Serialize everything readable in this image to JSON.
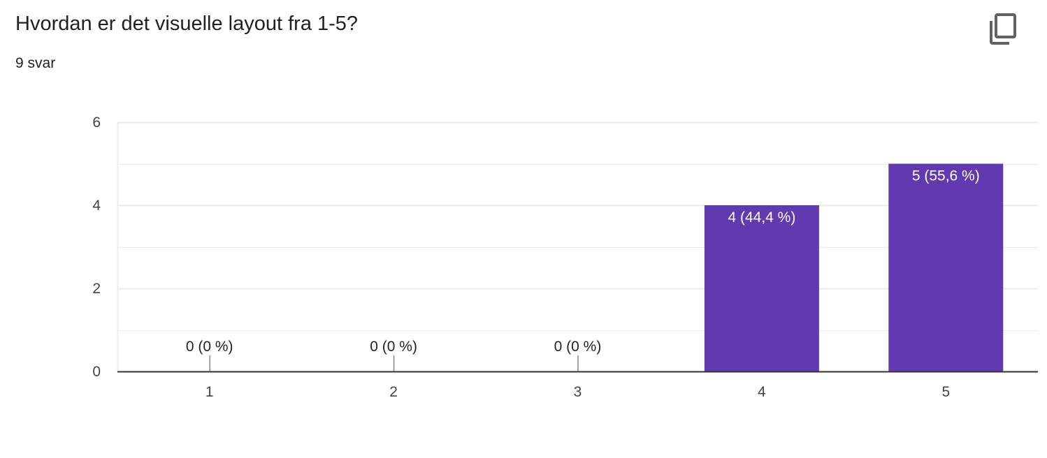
{
  "question": {
    "title": "Hvordan er det visuelle layout fra 1-5?",
    "response_count": "9 svar",
    "copy_icon": "copy-icon"
  },
  "colors": {
    "bar": "#6339b0",
    "gridline": "#ebebeb",
    "axis": "#333333",
    "label_inside": "#ffffff",
    "label_outside": "#222222"
  },
  "chart_data": {
    "type": "bar",
    "categories": [
      "1",
      "2",
      "3",
      "4",
      "5"
    ],
    "values": [
      0,
      0,
      0,
      4,
      5
    ],
    "data_labels": [
      "0 (0 %)",
      "0 (0 %)",
      "0 (0 %)",
      "4 (44,4 %)",
      "5 (55,6 %)"
    ],
    "y_ticks": [
      "0",
      "2",
      "4",
      "6"
    ],
    "ylim": [
      0,
      6
    ],
    "minor_step": 1,
    "grid": true,
    "legend": "none"
  }
}
